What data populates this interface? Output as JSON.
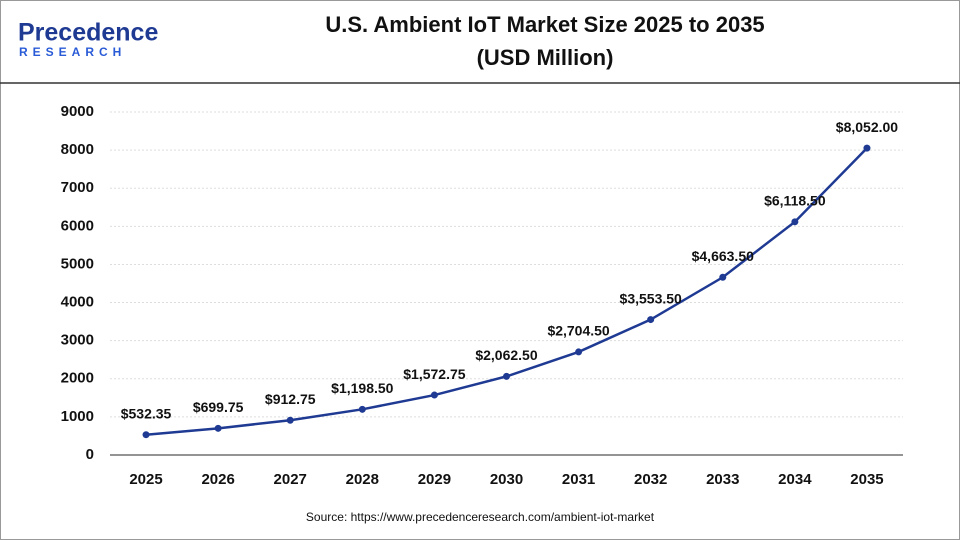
{
  "logo": {
    "name": "Precedence",
    "tagline": "RESEARCH"
  },
  "chart_data": {
    "type": "line",
    "title": "U.S. Ambient IoT Market Size 2025 to 2035",
    "subtitle": "(USD Million)",
    "categories": [
      "2025",
      "2026",
      "2027",
      "2028",
      "2029",
      "2030",
      "2031",
      "2032",
      "2033",
      "2034",
      "2035"
    ],
    "values": [
      532.35,
      699.75,
      912.75,
      1198.5,
      1572.75,
      2062.5,
      2704.5,
      3553.5,
      4663.5,
      6118.5,
      8052
    ],
    "value_labels": [
      "$532.35",
      "$699.75",
      "$912.75",
      "$1,198.50",
      "$1,572.75",
      "$2,062.50",
      "$2,704.50",
      "$3,553.50",
      "$4,663.50",
      "$6,118.50",
      "$8,052.00"
    ],
    "color": "#1f3a93",
    "ylim": [
      0,
      9000
    ],
    "yticks": [
      0,
      1000,
      2000,
      3000,
      4000,
      5000,
      6000,
      7000,
      8000,
      9000
    ],
    "grid": true,
    "source": "Source: https://www.precedenceresearch.com/ambient-iot-market"
  }
}
